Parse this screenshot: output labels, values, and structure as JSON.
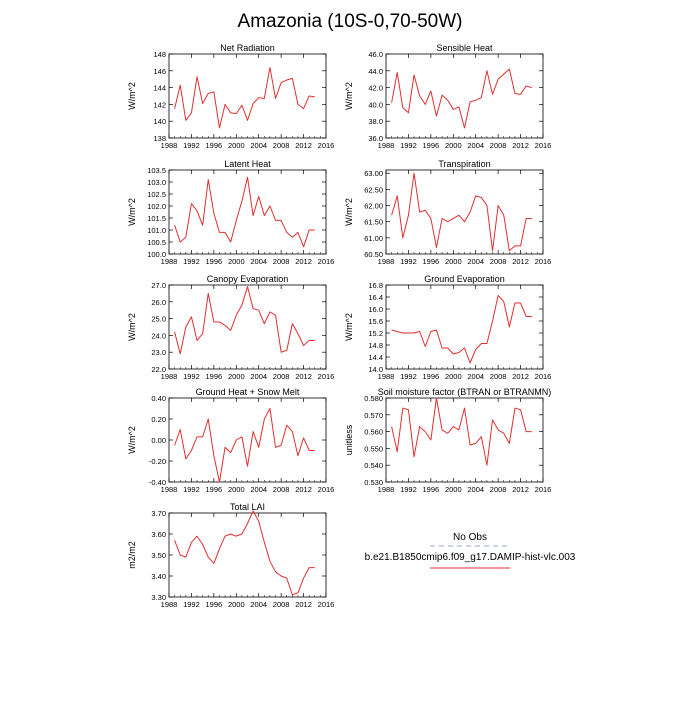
{
  "figure": {
    "title": "Amazonia (10S-0,70-50W)",
    "legend": {
      "entries": [
        {
          "label": "No Obs",
          "color": "#9aa6d6",
          "style": "dashed"
        },
        {
          "label": "b.e21.B1850cmip6.f09_g17.DAMIP-hist-vlc.003",
          "color": "#e03030",
          "style": "solid"
        }
      ]
    }
  },
  "chart_data": [
    {
      "type": "line",
      "title": "Net Radiation",
      "ylabel": "W/m^2",
      "xlim": [
        1988,
        2016
      ],
      "xticks": [
        1988,
        1992,
        1996,
        2000,
        2004,
        2008,
        2012,
        2016
      ],
      "ylim": [
        138,
        148
      ],
      "yticks": [
        138,
        140,
        142,
        144,
        146,
        148
      ],
      "ytick_labels": [
        "138",
        "140",
        "142",
        "144",
        "146",
        "148"
      ],
      "x": [
        1989,
        1990,
        1991,
        1992,
        1993,
        1994,
        1995,
        1996,
        1997,
        1998,
        1999,
        2000,
        2001,
        2002,
        2003,
        2004,
        2005,
        2006,
        2007,
        2008,
        2009,
        2010,
        2011,
        2012,
        2013,
        2014
      ],
      "values": [
        141.5,
        144.3,
        140.1,
        141.0,
        145.3,
        142.1,
        143.3,
        143.5,
        139.2,
        142.0,
        141.0,
        140.9,
        141.9,
        140.1,
        142.1,
        142.8,
        142.7,
        146.4,
        142.7,
        144.6,
        144.9,
        145.1,
        142.0,
        141.5,
        143.0,
        142.9
      ]
    },
    {
      "type": "line",
      "title": "Sensible Heat",
      "ylabel": "W/m^2",
      "xlim": [
        1988,
        2016
      ],
      "xticks": [
        1988,
        1992,
        1996,
        2000,
        2004,
        2008,
        2012,
        2016
      ],
      "ylim": [
        36,
        46
      ],
      "yticks": [
        36,
        38,
        40,
        42,
        44,
        46
      ],
      "ytick_labels": [
        "36.0",
        "38.0",
        "40.0",
        "42.0",
        "44.0",
        "46.0"
      ],
      "x": [
        1989,
        1990,
        1991,
        1992,
        1993,
        1994,
        1995,
        1996,
        1997,
        1998,
        1999,
        2000,
        2001,
        2002,
        2003,
        2004,
        2005,
        2006,
        2007,
        2008,
        2009,
        2010,
        2011,
        2012,
        2013,
        2014
      ],
      "values": [
        40.2,
        43.8,
        39.6,
        39.0,
        43.5,
        41.0,
        40.0,
        41.6,
        38.6,
        41.1,
        40.5,
        39.4,
        39.7,
        37.2,
        40.3,
        40.5,
        40.8,
        44.0,
        41.2,
        43.0,
        43.6,
        44.2,
        41.3,
        41.2,
        42.2,
        42.0
      ]
    },
    {
      "type": "line",
      "title": "Latent Heat",
      "ylabel": "W/m^2",
      "xlim": [
        1988,
        2016
      ],
      "xticks": [
        1988,
        1992,
        1996,
        2000,
        2004,
        2008,
        2012,
        2016
      ],
      "ylim": [
        100,
        103.5
      ],
      "yticks": [
        100,
        100.5,
        101,
        101.5,
        102,
        102.5,
        103,
        103.5
      ],
      "ytick_labels": [
        "100.0",
        "100.5",
        "101.0",
        "101.5",
        "102.0",
        "102.5",
        "103.0",
        "103.5"
      ],
      "x": [
        1989,
        1990,
        1991,
        1992,
        1993,
        1994,
        1995,
        1996,
        1997,
        1998,
        1999,
        2000,
        2001,
        2002,
        2003,
        2004,
        2005,
        2006,
        2007,
        2008,
        2009,
        2010,
        2011,
        2012,
        2013,
        2014
      ],
      "values": [
        101.2,
        100.5,
        100.7,
        102.1,
        101.8,
        101.2,
        103.1,
        101.7,
        100.9,
        100.9,
        100.5,
        101.4,
        102.2,
        103.2,
        101.6,
        102.4,
        101.6,
        102.0,
        101.4,
        101.4,
        100.9,
        100.7,
        100.9,
        100.3,
        101.0,
        101.0
      ]
    },
    {
      "type": "line",
      "title": "Transpiration",
      "ylabel": "W/m^2",
      "xlim": [
        1988,
        2016
      ],
      "xticks": [
        1988,
        1992,
        1996,
        2000,
        2004,
        2008,
        2012,
        2016
      ],
      "ylim": [
        60.5,
        63.1
      ],
      "yticks": [
        60.5,
        61.0,
        61.5,
        62.0,
        62.5,
        63.0
      ],
      "ytick_labels": [
        "60.50",
        "61.00",
        "61.50",
        "62.00",
        "62.50",
        "63.00"
      ],
      "x": [
        1989,
        1990,
        1991,
        1992,
        1993,
        1994,
        1995,
        1996,
        1997,
        1998,
        1999,
        2000,
        2001,
        2002,
        2003,
        2004,
        2005,
        2006,
        2007,
        2008,
        2009,
        2010,
        2011,
        2012,
        2013,
        2014
      ],
      "values": [
        61.7,
        62.3,
        61.0,
        61.7,
        63.0,
        61.8,
        61.85,
        61.6,
        60.7,
        61.6,
        61.5,
        61.6,
        61.7,
        61.5,
        61.8,
        62.3,
        62.25,
        62.0,
        60.6,
        62.0,
        61.7,
        60.6,
        60.75,
        60.75,
        61.6,
        61.6
      ]
    },
    {
      "type": "line",
      "title": "Canopy Evaporation",
      "ylabel": "W/m^2",
      "xlim": [
        1988,
        2016
      ],
      "xticks": [
        1988,
        1992,
        1996,
        2000,
        2004,
        2008,
        2012,
        2016
      ],
      "ylim": [
        22,
        27
      ],
      "yticks": [
        22,
        23,
        24,
        25,
        26,
        27
      ],
      "ytick_labels": [
        "22.0",
        "23.0",
        "24.0",
        "25.0",
        "26.0",
        "27.0"
      ],
      "x": [
        1989,
        1990,
        1991,
        1992,
        1993,
        1994,
        1995,
        1996,
        1997,
        1998,
        1999,
        2000,
        2001,
        2002,
        2003,
        2004,
        2005,
        2006,
        2007,
        2008,
        2009,
        2010,
        2011,
        2012,
        2013,
        2014
      ],
      "values": [
        24.2,
        22.9,
        24.5,
        25.1,
        23.7,
        24.1,
        26.5,
        24.8,
        24.8,
        24.6,
        24.3,
        25.2,
        25.8,
        26.9,
        25.6,
        25.5,
        24.7,
        25.4,
        25.2,
        23.0,
        23.1,
        24.7,
        24.1,
        23.4,
        23.7,
        23.7
      ]
    },
    {
      "type": "line",
      "title": "Ground Evaporation",
      "ylabel": "W/m^2",
      "xlim": [
        1988,
        2016
      ],
      "xticks": [
        1988,
        1992,
        1996,
        2000,
        2004,
        2008,
        2012,
        2016
      ],
      "ylim": [
        14,
        16.8
      ],
      "yticks": [
        14.0,
        14.4,
        14.8,
        15.2,
        15.6,
        16.0,
        16.4,
        16.8
      ],
      "ytick_labels": [
        "14.0",
        "14.4",
        "14.8",
        "15.2",
        "15.6",
        "16.0",
        "16.4",
        "16.8"
      ],
      "x": [
        1989,
        1990,
        1991,
        1992,
        1993,
        1994,
        1995,
        1996,
        1997,
        1998,
        1999,
        2000,
        2001,
        2002,
        2003,
        2004,
        2005,
        2006,
        2007,
        2008,
        2009,
        2010,
        2011,
        2012,
        2013,
        2014
      ],
      "values": [
        15.3,
        15.25,
        15.2,
        15.2,
        15.2,
        15.25,
        14.75,
        15.25,
        15.3,
        14.7,
        14.7,
        14.5,
        14.55,
        14.7,
        14.2,
        14.65,
        14.85,
        14.85,
        15.6,
        16.45,
        16.25,
        15.4,
        16.2,
        16.2,
        15.75,
        15.75
      ]
    },
    {
      "type": "line",
      "title": "Ground Heat + Snow Melt",
      "ylabel": "W/m^2",
      "xlim": [
        1988,
        2016
      ],
      "xticks": [
        1988,
        1992,
        1996,
        2000,
        2004,
        2008,
        2012,
        2016
      ],
      "ylim": [
        -0.4,
        0.4
      ],
      "yticks": [
        -0.4,
        -0.2,
        0.0,
        0.2,
        0.4
      ],
      "ytick_labels": [
        "-0.40",
        "-0.20",
        "0.00",
        "0.20",
        "0.40"
      ],
      "x": [
        1989,
        1990,
        1991,
        1992,
        1993,
        1994,
        1995,
        1996,
        1997,
        1998,
        1999,
        2000,
        2001,
        2002,
        2003,
        2004,
        2005,
        2006,
        2007,
        2008,
        2009,
        2010,
        2011,
        2012,
        2013,
        2014
      ],
      "values": [
        -0.05,
        0.1,
        -0.18,
        -0.1,
        0.03,
        0.03,
        0.2,
        -0.15,
        -0.4,
        -0.07,
        -0.12,
        0.0,
        0.03,
        -0.25,
        0.08,
        -0.07,
        0.2,
        0.3,
        -0.07,
        -0.05,
        0.14,
        0.08,
        -0.15,
        0.02,
        -0.1,
        -0.1
      ]
    },
    {
      "type": "line",
      "title": "Soil moisture factor (BTRAN or BTRANMN)",
      "ylabel": "unitless",
      "xlim": [
        1988,
        2016
      ],
      "xticks": [
        1988,
        1992,
        1996,
        2000,
        2004,
        2008,
        2012,
        2016
      ],
      "ylim": [
        0.53,
        0.58
      ],
      "yticks": [
        0.53,
        0.54,
        0.55,
        0.56,
        0.57,
        0.58
      ],
      "ytick_labels": [
        "0.530",
        "0.540",
        "0.550",
        "0.560",
        "0.570",
        "0.580"
      ],
      "x": [
        1989,
        1990,
        1991,
        1992,
        1993,
        1994,
        1995,
        1996,
        1997,
        1998,
        1999,
        2000,
        2001,
        2002,
        2003,
        2004,
        2005,
        2006,
        2007,
        2008,
        2009,
        2010,
        2011,
        2012,
        2013,
        2014
      ],
      "values": [
        0.563,
        0.548,
        0.574,
        0.573,
        0.545,
        0.563,
        0.56,
        0.555,
        0.58,
        0.561,
        0.559,
        0.563,
        0.561,
        0.574,
        0.552,
        0.553,
        0.557,
        0.54,
        0.567,
        0.561,
        0.559,
        0.553,
        0.574,
        0.573,
        0.56,
        0.56
      ]
    },
    {
      "type": "line",
      "title": "Total LAI",
      "ylabel": "m2/m2",
      "xlim": [
        1988,
        2016
      ],
      "xticks": [
        1988,
        1992,
        1996,
        2000,
        2004,
        2008,
        2012,
        2016
      ],
      "ylim": [
        3.3,
        3.7
      ],
      "yticks": [
        3.3,
        3.4,
        3.5,
        3.6,
        3.7
      ],
      "ytick_labels": [
        "3.30",
        "3.40",
        "3.50",
        "3.60",
        "3.70"
      ],
      "x": [
        1989,
        1990,
        1991,
        1992,
        1993,
        1994,
        1995,
        1996,
        1997,
        1998,
        1999,
        2000,
        2001,
        2002,
        2003,
        2004,
        2005,
        2006,
        2007,
        2008,
        2009,
        2010,
        2011,
        2012,
        2013,
        2014
      ],
      "values": [
        3.57,
        3.5,
        3.49,
        3.56,
        3.59,
        3.55,
        3.49,
        3.46,
        3.53,
        3.59,
        3.6,
        3.59,
        3.6,
        3.65,
        3.71,
        3.66,
        3.56,
        3.47,
        3.42,
        3.4,
        3.39,
        3.31,
        3.32,
        3.39,
        3.44,
        3.44
      ]
    }
  ]
}
